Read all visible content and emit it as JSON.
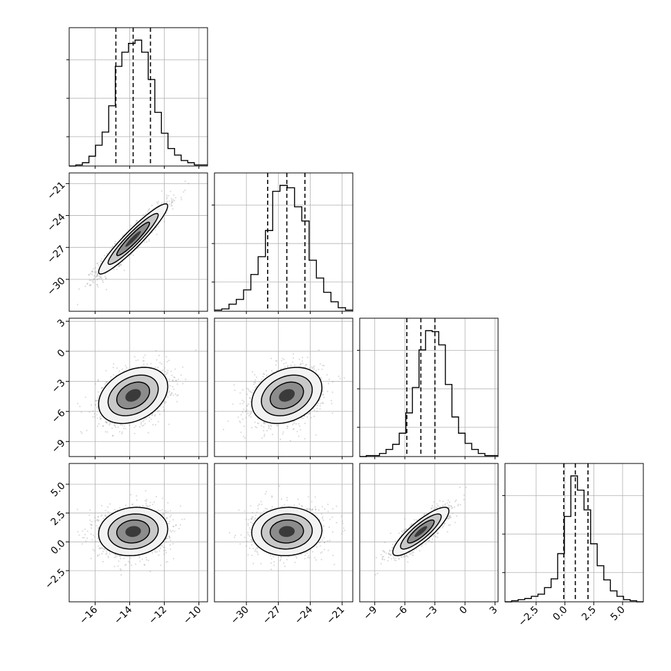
{
  "chart_data": {
    "type": "corner",
    "parameters": [
      "",
      "",
      "",
      ""
    ],
    "grid": true,
    "quantiles": [
      0.16,
      0.5,
      0.84
    ],
    "ranges": [
      [
        -17.5,
        -9.5
      ],
      [
        -33,
        -20
      ],
      [
        -10.5,
        3.3
      ],
      [
        -5.2,
        6.8
      ]
    ],
    "ticks": [
      [
        -16,
        -14,
        -12,
        -10
      ],
      [
        -30,
        -27,
        -24,
        -21
      ],
      [
        -9,
        -6,
        -3,
        0,
        3
      ],
      [
        -2.5,
        0.0,
        2.5,
        5.0
      ]
    ],
    "tick_labels": [
      [
        "−16",
        "−14",
        "−12",
        "−10"
      ],
      [
        "−30",
        "−27",
        "−24",
        "−21"
      ],
      [
        "−9",
        "−6",
        "−3",
        "0",
        "3"
      ],
      [
        "−2.5",
        "0.0",
        "2.5",
        "5.0"
      ]
    ],
    "marginals": [
      {
        "param": 0,
        "quantile_values": [
          -14.8,
          -13.8,
          -12.8
        ],
        "bins_range": [
          -17.5,
          -9.5
        ],
        "counts": [
          0,
          1,
          3,
          9,
          19,
          31,
          55,
          91,
          104,
          112,
          115,
          104,
          79,
          49,
          30,
          16,
          10,
          5,
          3,
          1,
          1
        ]
      },
      {
        "param": 1,
        "quantile_values": [
          -28.0,
          -26.2,
          -24.5
        ],
        "bins_range": [
          -33,
          -20
        ],
        "counts": [
          1,
          2,
          6,
          10,
          18,
          31,
          46,
          68,
          101,
          106,
          104,
          88,
          76,
          43,
          28,
          16,
          8,
          3,
          1
        ]
      },
      {
        "param": 2,
        "quantile_values": [
          -5.8,
          -4.4,
          -3.0
        ],
        "bins_range": [
          -10.5,
          3.3
        ],
        "counts": [
          0,
          1,
          1,
          3,
          7,
          12,
          23,
          43,
          68,
          105,
          124,
          123,
          110,
          71,
          39,
          23,
          13,
          7,
          3,
          1,
          1
        ]
      },
      {
        "param": 3,
        "quantile_values": [
          -0.1,
          0.9,
          2.0
        ],
        "bins_range": [
          -5.2,
          6.8
        ],
        "counts": [
          0,
          1,
          2,
          3,
          5,
          7,
          13,
          21,
          44,
          78,
          115,
          102,
          84,
          53,
          33,
          20,
          10,
          5,
          2,
          1,
          0
        ]
      }
    ],
    "joint": [
      {
        "x": 0,
        "y": 1,
        "mean": [
          -13.8,
          -26.2
        ],
        "sd": [
          1.0,
          1.65
        ],
        "rho": 0.94
      },
      {
        "x": 0,
        "y": 2,
        "mean": [
          -13.8,
          -4.4
        ],
        "sd": [
          1.0,
          1.4
        ],
        "rho": 0.32
      },
      {
        "x": 1,
        "y": 2,
        "mean": [
          -26.2,
          -4.4
        ],
        "sd": [
          1.65,
          1.4
        ],
        "rho": 0.28
      },
      {
        "x": 0,
        "y": 3,
        "mean": [
          -13.8,
          0.9
        ],
        "sd": [
          1.0,
          1.05
        ],
        "rho": 0.1
      },
      {
        "x": 1,
        "y": 3,
        "mean": [
          -26.2,
          0.9
        ],
        "sd": [
          1.65,
          1.05
        ],
        "rho": 0.05
      },
      {
        "x": 2,
        "y": 3,
        "mean": [
          -4.4,
          0.9
        ],
        "sd": [
          1.4,
          1.05
        ],
        "rho": 0.85
      }
    ]
  }
}
